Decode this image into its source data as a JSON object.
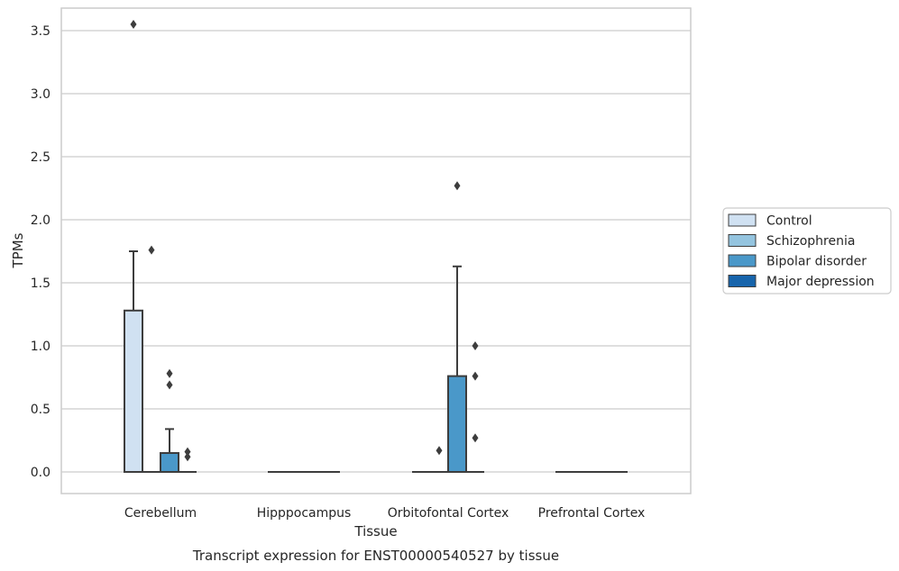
{
  "chart_data": {
    "type": "box",
    "title": "",
    "caption": "Transcript expression for ENST00000540527 by tissue",
    "xlabel": "Tissue",
    "ylabel": "TPMs",
    "ylim": [
      -0.17,
      3.72
    ],
    "yticks": [
      "0.0",
      "0.5",
      "1.0",
      "1.5",
      "2.0",
      "2.5",
      "3.0",
      "3.5"
    ],
    "grid": true,
    "legend_position": "right",
    "categories": [
      "Cerebellum",
      "Hipppocampus",
      "Orbitofontal Cortex",
      "Prefrontal Cortex"
    ],
    "series": [
      {
        "name": "Control",
        "color": "#d0e1f2"
      },
      {
        "name": "Schizophrenia",
        "color": "#94c4df"
      },
      {
        "name": "Bipolar disorder",
        "color": "#4a98c9"
      },
      {
        "name": "Major depression",
        "color": "#1764ab"
      }
    ],
    "boxes": [
      {
        "category": "Cerebellum",
        "series": "Control",
        "min": 0,
        "q1": 0,
        "median": 0,
        "q3": 1.28,
        "max": 1.75,
        "outliers": [
          3.55
        ]
      },
      {
        "category": "Cerebellum",
        "series": "Schizophrenia",
        "min": 0,
        "q1": 0,
        "median": 0,
        "q3": 0,
        "max": 0,
        "outliers": [
          1.76
        ]
      },
      {
        "category": "Cerebellum",
        "series": "Bipolar disorder",
        "min": 0,
        "q1": 0,
        "median": 0,
        "q3": 0.15,
        "max": 0.34,
        "outliers": [
          0.78,
          0.69
        ]
      },
      {
        "category": "Cerebellum",
        "series": "Major depression",
        "min": 0,
        "q1": 0,
        "median": 0,
        "q3": 0,
        "max": 0,
        "outliers": [
          0.16,
          0.12
        ]
      },
      {
        "category": "Hipppocampus",
        "series": "Control",
        "min": 0,
        "q1": 0,
        "median": 0,
        "q3": 0,
        "max": 0,
        "outliers": []
      },
      {
        "category": "Hipppocampus",
        "series": "Schizophrenia",
        "min": 0,
        "q1": 0,
        "median": 0,
        "q3": 0,
        "max": 0,
        "outliers": []
      },
      {
        "category": "Hipppocampus",
        "series": "Bipolar disorder",
        "min": 0,
        "q1": 0,
        "median": 0,
        "q3": 0,
        "max": 0,
        "outliers": []
      },
      {
        "category": "Hipppocampus",
        "series": "Major depression",
        "min": 0,
        "q1": 0,
        "median": 0,
        "q3": 0,
        "max": 0,
        "outliers": []
      },
      {
        "category": "Orbitofontal Cortex",
        "series": "Control",
        "min": 0,
        "q1": 0,
        "median": 0,
        "q3": 0,
        "max": 0,
        "outliers": []
      },
      {
        "category": "Orbitofontal Cortex",
        "series": "Schizophrenia",
        "min": 0,
        "q1": 0,
        "median": 0,
        "q3": 0,
        "max": 0,
        "outliers": [
          0.17
        ]
      },
      {
        "category": "Orbitofontal Cortex",
        "series": "Bipolar disorder",
        "min": 0,
        "q1": 0,
        "median": 0,
        "q3": 0.76,
        "max": 1.63,
        "outliers": [
          2.27
        ]
      },
      {
        "category": "Orbitofontal Cortex",
        "series": "Major depression",
        "min": 0,
        "q1": 0,
        "median": 0,
        "q3": 0,
        "max": 0,
        "outliers": [
          1.0,
          0.76,
          0.27
        ]
      },
      {
        "category": "Prefrontal Cortex",
        "series": "Control",
        "min": 0,
        "q1": 0,
        "median": 0,
        "q3": 0,
        "max": 0,
        "outliers": []
      },
      {
        "category": "Prefrontal Cortex",
        "series": "Schizophrenia",
        "min": 0,
        "q1": 0,
        "median": 0,
        "q3": 0,
        "max": 0,
        "outliers": []
      },
      {
        "category": "Prefrontal Cortex",
        "series": "Bipolar disorder",
        "min": 0,
        "q1": 0,
        "median": 0,
        "q3": 0,
        "max": 0,
        "outliers": []
      },
      {
        "category": "Prefrontal Cortex",
        "series": "Major depression",
        "min": 0,
        "q1": 0,
        "median": 0,
        "q3": 0,
        "max": 0,
        "outliers": []
      }
    ]
  }
}
